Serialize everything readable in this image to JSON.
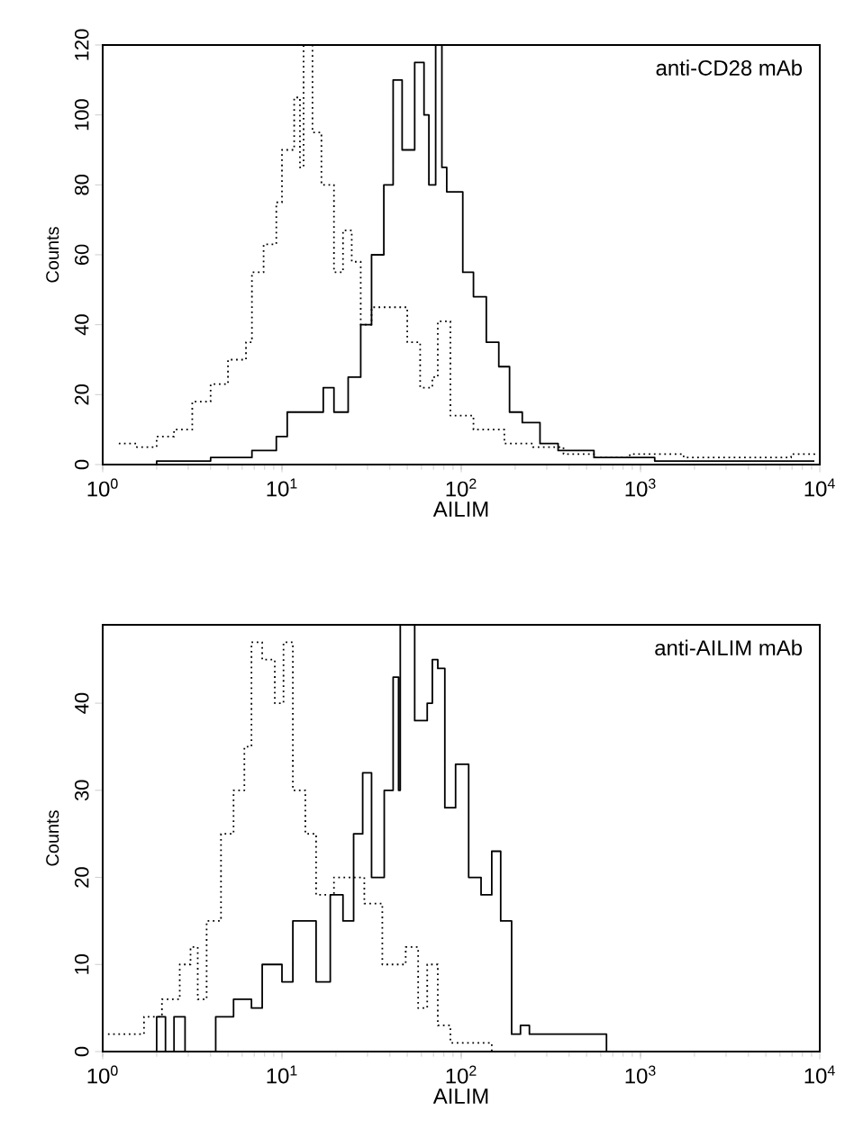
{
  "chart_data": [
    {
      "type": "step",
      "xlabel": "AILIM",
      "ylabel": "Counts",
      "annotations": [
        "anti-CD28 mAb"
      ],
      "log": "x",
      "xlim": [
        1,
        10000
      ],
      "ylim": [
        0,
        120
      ],
      "xticks": [
        {
          "value": 1,
          "label": "10$^{0}$"
        },
        {
          "value": 10,
          "label": "10$^{1}$"
        },
        {
          "value": 100,
          "label": "10$^{2}$"
        },
        {
          "value": 1000,
          "label": "10$^{3}$"
        },
        {
          "value": 10000,
          "label": "10$^{4}$"
        }
      ],
      "yticks": [
        0,
        20,
        40,
        60,
        80,
        100,
        120
      ],
      "series": [
        {
          "color": "#000000",
          "line_style": "dotted",
          "x": [
            1.23,
            1.55,
            2.0,
            2.5,
            3.16,
            4.0,
            5.0,
            6.3,
            6.8,
            7.9,
            9.3,
            10,
            11.7,
            12.6,
            13.2,
            14.8,
            16.6,
            19.5,
            21.9,
            24.5,
            27.5,
            31.6,
            50,
            59,
            69,
            74,
            87,
            117,
            174,
            251,
            372,
            550,
            871,
            1740,
            3720,
            6920,
            9330
          ],
          "values": [
            6,
            5,
            8,
            10,
            18,
            23,
            30,
            35,
            55,
            63,
            75,
            90,
            105,
            85,
            120,
            95,
            80,
            55,
            67,
            58,
            40,
            45,
            35,
            22,
            25,
            41,
            14,
            10,
            6,
            5,
            3,
            2,
            3,
            2,
            2,
            3,
            2
          ]
        },
        {
          "color": "#000000",
          "line_style": "solid",
          "x": [
            1.0,
            2.0,
            4.0,
            6.8,
            9.3,
            10.7,
            13.5,
            17,
            19.5,
            23.4,
            27.5,
            31.6,
            37,
            41.7,
            46.8,
            55,
            62,
            66,
            72,
            78,
            83,
            102,
            117,
            138,
            162,
            186,
            219,
            275,
            347,
            550,
            1200,
            2570,
            9330
          ],
          "values": [
            0,
            1,
            2,
            4,
            8,
            15,
            15,
            22,
            15,
            25,
            40,
            60,
            80,
            110,
            90,
            115,
            100,
            80,
            120,
            85,
            78,
            55,
            48,
            35,
            28,
            15,
            12,
            6,
            4,
            2,
            1,
            1,
            1
          ]
        }
      ]
    },
    {
      "type": "step",
      "xlabel": "AILIM",
      "ylabel": "Counts",
      "annotations": [
        "anti-AILIM mAb"
      ],
      "log": "x",
      "xlim": [
        1,
        10000
      ],
      "ylim": [
        0,
        49
      ],
      "xticks": [
        {
          "value": 1,
          "label": "10$^{0}$"
        },
        {
          "value": 10,
          "label": "10$^{1}$"
        },
        {
          "value": 100,
          "label": "10$^{2}$"
        },
        {
          "value": 1000,
          "label": "10$^{3}$"
        },
        {
          "value": 10000,
          "label": "10$^{4}$"
        }
      ],
      "yticks": [
        0,
        10,
        20,
        30,
        40
      ],
      "series": [
        {
          "color": "#000000",
          "line_style": "dotted",
          "x": [
            1.07,
            1.35,
            1.7,
            2.14,
            2.69,
            3.09,
            3.39,
            3.8,
            4.57,
            5.37,
            6.17,
            6.76,
            7.76,
            9.12,
            10.2,
            11.5,
            13.5,
            15.5,
            19.5,
            28.8,
            36.3,
            49,
            57.5,
            64.6,
            74,
            87,
            117,
            148
          ],
          "values": [
            2,
            2,
            4,
            6,
            10,
            12,
            6,
            15,
            25,
            30,
            35,
            47,
            45,
            40,
            47,
            30,
            25,
            18,
            20,
            17,
            10,
            12,
            5,
            10,
            3,
            1,
            1,
            0
          ]
        },
        {
          "color": "#000000",
          "line_style": "solid",
          "x": [
            1.0,
            2.0,
            2.24,
            2.5,
            2.88,
            4.27,
            5.37,
            6.76,
            7.76,
            10,
            11.5,
            13.5,
            15.5,
            18.6,
            21.9,
            25.1,
            28.2,
            31.6,
            37.2,
            41.7,
            44.7,
            45.7,
            55,
            64.6,
            69,
            74,
            81,
            93,
            110,
            129,
            148,
            166,
            191,
            214,
            240,
            302,
            407,
            550,
            646,
            9330
          ],
          "values": [
            0,
            4,
            0,
            4,
            0,
            4,
            6,
            5,
            10,
            8,
            15,
            15,
            8,
            18,
            15,
            25,
            32,
            20,
            30,
            43,
            30,
            49,
            38,
            40,
            45,
            44,
            28,
            33,
            20,
            18,
            23,
            15,
            2,
            3,
            2,
            2,
            2,
            2,
            0,
            0
          ]
        }
      ]
    }
  ]
}
